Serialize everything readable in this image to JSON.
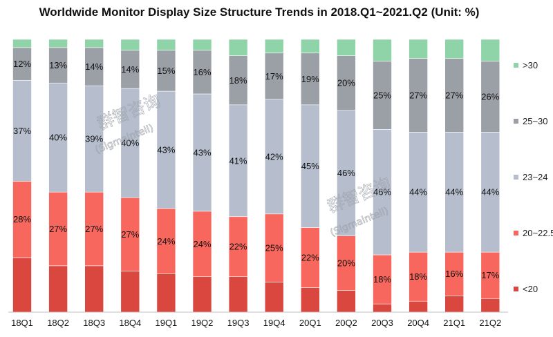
{
  "chart_data": {
    "type": "stacked-bar",
    "title": "Worldwide Monitor Display Size Structure Trends in 2018.Q1~2021.Q2 (Unit: %)",
    "xlabel": "",
    "ylabel": "",
    "ylim": [
      0,
      100
    ],
    "legend_position": "right",
    "categories": [
      "18Q1",
      "18Q2",
      "18Q3",
      "18Q4",
      "19Q1",
      "19Q2",
      "19Q3",
      "19Q4",
      "20Q1",
      "20Q2",
      "20Q3",
      "20Q4",
      "21Q1",
      "21Q2"
    ],
    "series": [
      {
        "name": "<20",
        "color": "#d9473f",
        "values": [
          20,
          17,
          17,
          15,
          14,
          13,
          13,
          11,
          9,
          8,
          3,
          4,
          6,
          5
        ],
        "labels": [
          "",
          "",
          "",
          "",
          "",
          "",
          "",
          "",
          "",
          "",
          "",
          "",
          "",
          ""
        ]
      },
      {
        "name": "20~22.5",
        "color": "#f8675d",
        "values": [
          28,
          27,
          27,
          27,
          24,
          24,
          22,
          25,
          22,
          20,
          18,
          18,
          16,
          17
        ],
        "labels": [
          "28%",
          "27%",
          "27%",
          "27%",
          "24%",
          "24%",
          "22%",
          "25%",
          "22%",
          "20%",
          "18%",
          "18%",
          "16%",
          "17%"
        ]
      },
      {
        "name": "23~24",
        "color": "#b6bece",
        "values": [
          37,
          40,
          39,
          40,
          43,
          43,
          41,
          42,
          45,
          46,
          46,
          44,
          44,
          44
        ],
        "labels": [
          "37%",
          "40%",
          "39%",
          "40%",
          "43%",
          "43%",
          "41%",
          "42%",
          "45%",
          "46%",
          "46%",
          "44%",
          "44%",
          "44%"
        ]
      },
      {
        "name": "25~30",
        "color": "#9b9fa6",
        "values": [
          12,
          13,
          14,
          14,
          15,
          16,
          18,
          17,
          19,
          20,
          25,
          27,
          27,
          26
        ],
        "labels": [
          "12%",
          "13%",
          "14%",
          "14%",
          "15%",
          "16%",
          "18%",
          "17%",
          "19%",
          "20%",
          "25%",
          "27%",
          "27%",
          "26%"
        ]
      },
      {
        "name": ">30",
        "color": "#8fd4a8",
        "values": [
          3,
          3,
          3,
          4,
          4,
          4,
          6,
          5,
          5,
          6,
          8,
          7,
          7,
          8
        ],
        "labels": [
          "",
          "",
          "",
          "",
          "",
          "",
          "",
          "",
          "",
          "",
          "",
          "",
          "",
          ""
        ]
      }
    ]
  },
  "watermark": {
    "chinese": "群智咨询",
    "english": "(Sigmaintell)"
  }
}
